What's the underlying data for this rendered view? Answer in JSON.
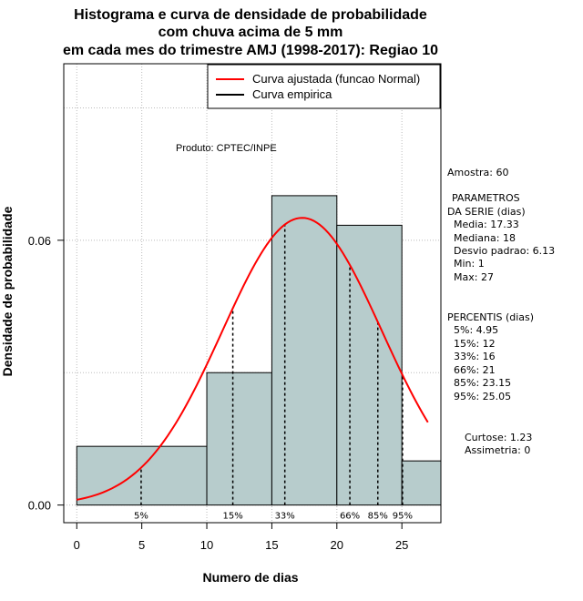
{
  "chart_data": {
    "type": "bar",
    "title": [
      "Histograma e curva de densidade de probabilidade",
      "com chuva acima de 5 mm",
      "em cada mes do trimestre AMJ (1998-2017): Regiao 10"
    ],
    "xlabel": "Numero de dias",
    "ylabel": "Densidade de probabilidade",
    "xlim": [
      -1,
      28
    ],
    "ylim": [
      -0.004,
      0.1
    ],
    "x_ticks": [
      0,
      5,
      10,
      15,
      20,
      25
    ],
    "x_tick_labels": [
      "0",
      "5",
      "10",
      "15",
      "20",
      "25"
    ],
    "y_ticks": [
      0.0,
      0.06
    ],
    "y_tick_labels": [
      "0.00",
      "0.06"
    ],
    "grid": true,
    "bins": [
      {
        "start": 0,
        "end": 10,
        "density": 0.0133
      },
      {
        "start": 10,
        "end": 15,
        "density": 0.03
      },
      {
        "start": 15,
        "end": 20,
        "density": 0.0701
      },
      {
        "start": 20,
        "end": 25,
        "density": 0.0634
      },
      {
        "start": 25,
        "end": 28,
        "density": 0.01
      }
    ],
    "normal_curve": {
      "mean": 17.33,
      "sd": 6.13,
      "x_from": 0,
      "x_to": 27
    },
    "percentile_lines": [
      {
        "x": 4.95,
        "label": "5%"
      },
      {
        "x": 12,
        "label": "15%"
      },
      {
        "x": 16,
        "label": "33%"
      },
      {
        "x": 21,
        "label": "66%"
      },
      {
        "x": 23.15,
        "label": "85%"
      },
      {
        "x": 25.05,
        "label": "95%"
      }
    ],
    "legend": {
      "position": "top-right",
      "entries": [
        {
          "label": "Curva ajustada (funcao Normal)",
          "color": "#ff0000"
        },
        {
          "label": "Curva empirica",
          "color": "#000000"
        }
      ]
    },
    "annotation": "Produto: CPTEC/INPE"
  },
  "colors": {
    "bar_fill": "#b7cccc",
    "normal_line": "#ff0000",
    "empirical_line": "#000000",
    "grid": "#bbbbbb"
  },
  "stats_panel": {
    "sample": "Amostra: 60",
    "params_heading_1": "PARAMETROS",
    "params_heading_2": "DA SERIE (dias)",
    "params": [
      "Media: 17.33",
      "Mediana: 18",
      "Desvio padrao: 6.13",
      "Min: 1",
      "Max: 27"
    ],
    "percentis_heading": "PERCENTIS (dias)",
    "percentis": [
      "5%: 4.95",
      "15%: 12",
      "33%: 16",
      "66%: 21",
      "85%: 23.15",
      "95%: 25.05"
    ],
    "curtose": "Curtose: 1.23",
    "assimetria": "Assimetria: 0"
  }
}
